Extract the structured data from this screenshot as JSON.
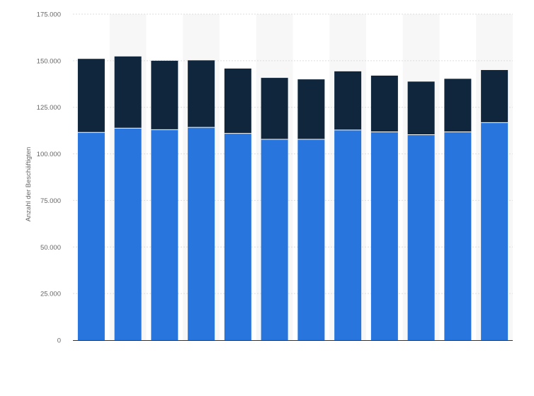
{
  "chart_data": {
    "type": "bar",
    "stacked": true,
    "title": "",
    "xlabel": "",
    "ylabel": "Anzahl der Beschäftigten",
    "ylim": [
      0,
      175000
    ],
    "y_ticks": [
      0,
      25000,
      50000,
      75000,
      100000,
      125000,
      150000,
      175000
    ],
    "y_tick_labels": [
      "0",
      "25.000",
      "50.000",
      "75.000",
      "100.000",
      "125.000",
      "150.000",
      "175.000"
    ],
    "categories": [
      "",
      "",
      "",
      "",
      "",
      "",
      "",
      "",
      "",
      "",
      "",
      ""
    ],
    "grid": true,
    "legend": "none",
    "colors": {
      "lower": "#2876dd",
      "upper": "#10263d",
      "grid": "#dddddd",
      "band": "#f7f7f7",
      "axis": "#333333"
    },
    "series": [
      {
        "values": [
          111500,
          113800,
          113000,
          114200,
          111000,
          107800,
          107800,
          112800,
          111800,
          110300,
          111800,
          116800
        ]
      },
      {
        "values": [
          39500,
          38500,
          37000,
          36000,
          34800,
          33000,
          32200,
          31500,
          30200,
          28500,
          28500,
          28200
        ]
      }
    ]
  }
}
